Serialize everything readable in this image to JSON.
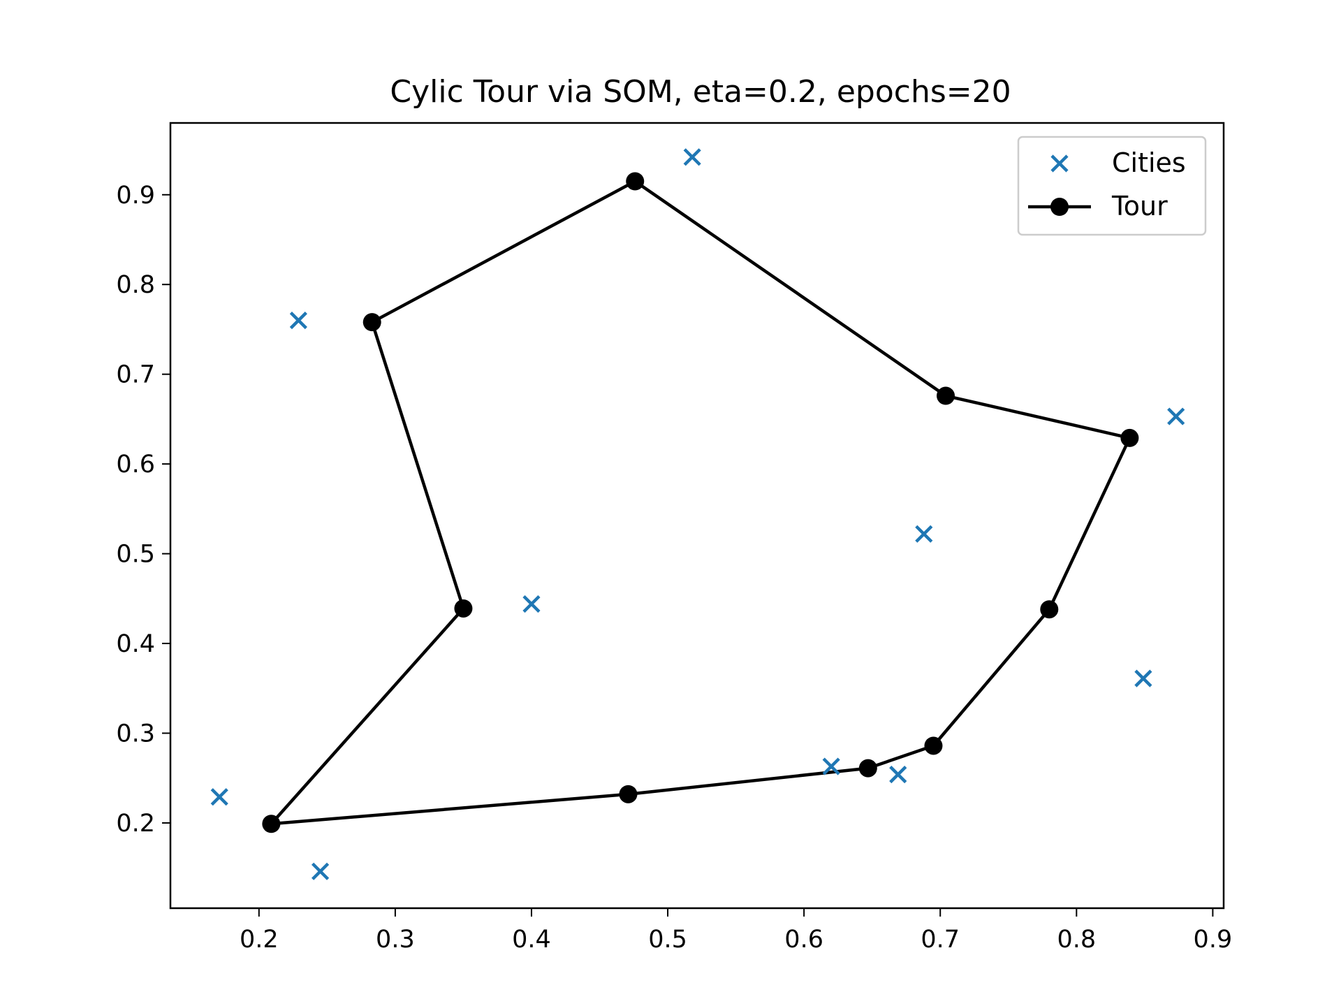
{
  "chart_data": {
    "type": "scatter",
    "title": "Cylic Tour via SOM, eta=0.2, epochs=20",
    "xlabel": "",
    "ylabel": "",
    "xlim": [
      0.135,
      0.908
    ],
    "ylim": [
      0.105,
      0.98
    ],
    "xticks": [
      0.2,
      0.3,
      0.4,
      0.5,
      0.6,
      0.7,
      0.8,
      0.9
    ],
    "xtick_labels": [
      "0.2",
      "0.3",
      "0.4",
      "0.5",
      "0.6",
      "0.7",
      "0.8",
      "0.9"
    ],
    "yticks": [
      0.2,
      0.3,
      0.4,
      0.5,
      0.6,
      0.7,
      0.8,
      0.9
    ],
    "ytick_labels": [
      "0.2",
      "0.3",
      "0.4",
      "0.5",
      "0.6",
      "0.7",
      "0.8",
      "0.9"
    ],
    "grid": false,
    "legend_position": "top-right",
    "series": [
      {
        "name": "Cities",
        "kind": "scatter",
        "marker": "x",
        "color": "#1f77b4",
        "points": [
          [
            0.518,
            0.942
          ],
          [
            0.229,
            0.76
          ],
          [
            0.873,
            0.653
          ],
          [
            0.688,
            0.522
          ],
          [
            0.4,
            0.444
          ],
          [
            0.849,
            0.361
          ],
          [
            0.62,
            0.263
          ],
          [
            0.669,
            0.254
          ],
          [
            0.171,
            0.229
          ],
          [
            0.245,
            0.146
          ]
        ]
      },
      {
        "name": "Tour",
        "kind": "line",
        "marker": "o",
        "color": "#000000",
        "points": [
          [
            0.476,
            0.915
          ],
          [
            0.704,
            0.676
          ],
          [
            0.839,
            0.629
          ],
          [
            0.78,
            0.438
          ],
          [
            0.695,
            0.286
          ],
          [
            0.647,
            0.261
          ],
          [
            0.471,
            0.232
          ],
          [
            0.209,
            0.199
          ],
          [
            0.35,
            0.439
          ],
          [
            0.283,
            0.758
          ],
          [
            0.476,
            0.915
          ]
        ]
      }
    ]
  }
}
